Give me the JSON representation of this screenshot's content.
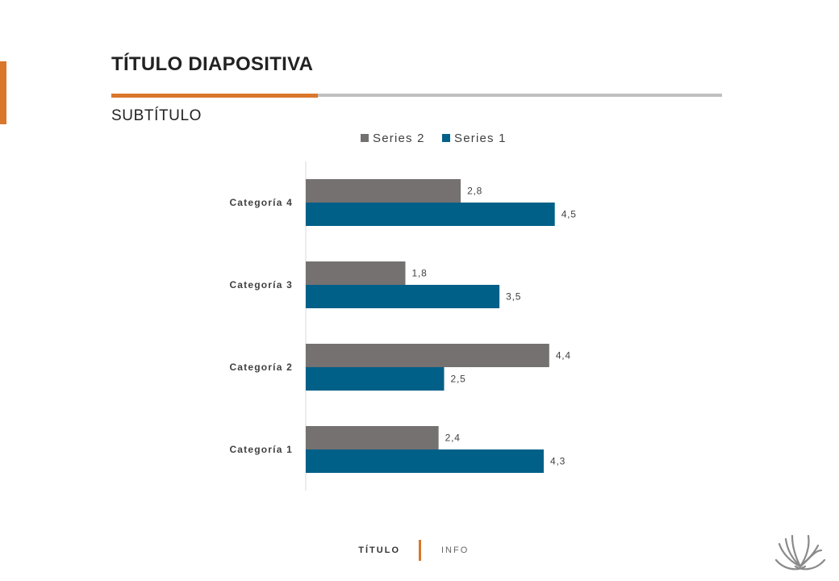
{
  "slide": {
    "title": "TÍTULO DIAPOSITIVA",
    "subtitle": "SUBTÍTULO"
  },
  "footer": {
    "left": "TÍTULO",
    "right": "INFO"
  },
  "colors": {
    "accent": "#d9772b",
    "rule": "#c0c0c0",
    "series1": "#006088",
    "series2": "#767171"
  },
  "logo_icon": "wheat-emblem-icon",
  "chart_data": {
    "type": "bar",
    "orientation": "horizontal",
    "categories": [
      "Categoría 1",
      "Categoría 2",
      "Categoría 3",
      "Categoría 4"
    ],
    "series": [
      {
        "name": "Series 1",
        "color": "#006088",
        "values": [
          4.3,
          2.5,
          3.5,
          4.5
        ],
        "labels": [
          "4,3",
          "2,5",
          "3,5",
          "4,5"
        ]
      },
      {
        "name": "Series 2",
        "color": "#767171",
        "values": [
          2.4,
          4.4,
          1.8,
          2.8
        ],
        "labels": [
          "2,4",
          "4,4",
          "1,8",
          "2,8"
        ]
      }
    ],
    "legend": {
      "position": "top",
      "order": [
        "Series 2",
        "Series 1"
      ]
    },
    "xlim": [
      0,
      5
    ],
    "grid": false,
    "axis_visible": false,
    "data_labels": true
  }
}
